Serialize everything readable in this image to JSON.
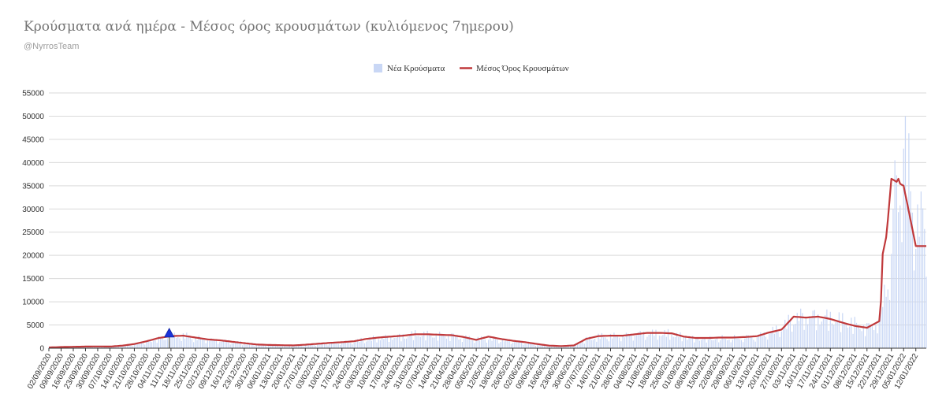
{
  "title": "Κρούσματα ανά ημέρα - Μέσος όρος κρουσμάτων (κυλιόμενος 7ημερου)",
  "subtitle": "@NyrrosTeam",
  "colors": {
    "bars": "#c9d7f5",
    "line": "#c0393b",
    "marker": "#1a33d9",
    "grid": "#d9d9d9"
  },
  "chart_data": {
    "type": "bar",
    "title": "Κρούσματα ανά ημέρα - Μέσος όρος κρουσμάτων (κυλιόμενος 7ημερου)",
    "xlabel": "",
    "ylabel": "",
    "ylim": [
      0,
      55000
    ],
    "y_ticks": [
      0,
      5000,
      10000,
      15000,
      20000,
      25000,
      30000,
      35000,
      40000,
      45000,
      50000,
      55000
    ],
    "grid": true,
    "legend_position": "top-center",
    "x_start": "02/09/2020",
    "x_end": "18/01/2022",
    "x_tick_labels": [
      "02/09/2020",
      "09/09/2020",
      "16/09/2020",
      "23/09/2020",
      "30/09/2020",
      "07/10/2020",
      "14/10/2020",
      "21/10/2020",
      "28/10/2020",
      "04/11/2020",
      "11/11/2020",
      "18/11/2020",
      "25/11/2020",
      "02/12/2020",
      "09/12/2020",
      "16/12/2020",
      "23/12/2020",
      "30/12/2020",
      "06/01/2021",
      "13/01/2021",
      "20/01/2021",
      "27/01/2021",
      "03/02/2021",
      "10/02/2021",
      "17/02/2021",
      "24/02/2021",
      "03/03/2021",
      "10/03/2021",
      "17/03/2021",
      "24/03/2021",
      "31/03/2021",
      "07/04/2021",
      "14/04/2021",
      "21/04/2021",
      "28/04/2021",
      "05/05/2021",
      "12/05/2021",
      "19/05/2021",
      "26/05/2021",
      "02/06/2021",
      "09/06/2021",
      "16/06/2021",
      "23/06/2021",
      "30/06/2021",
      "07/07/2021",
      "14/07/2021",
      "21/07/2021",
      "28/07/2021",
      "04/08/2021",
      "11/08/2021",
      "18/08/2021",
      "25/08/2021",
      "01/09/2021",
      "08/09/2021",
      "15/09/2021",
      "22/09/2021",
      "29/09/2021",
      "06/10/2021",
      "13/10/2021",
      "20/10/2021",
      "27/10/2021",
      "03/11/2021",
      "10/11/2021",
      "17/11/2021",
      "24/11/2021",
      "01/12/2021",
      "08/12/2021",
      "15/12/2021",
      "22/12/2021",
      "29/12/2021",
      "05/01/2022",
      "12/01/2022"
    ],
    "series": [
      {
        "name": "Νέα Κρούσματα",
        "kind": "bar",
        "weekly_values": [
          150,
          250,
          300,
          350,
          380,
          350,
          550,
          900,
          1500,
          2200,
          2700,
          2800,
          2300,
          1900,
          1700,
          1400,
          1100,
          800,
          700,
          650,
          600,
          750,
          950,
          1150,
          1300,
          1500,
          2000,
          2300,
          2500,
          2700,
          3200,
          3000,
          2900,
          2800,
          2400,
          2000,
          2200,
          1800,
          1600,
          1300,
          900,
          550,
          450,
          600,
          2000,
          2600,
          2700,
          2700,
          3000,
          3300,
          3300,
          3300,
          2600,
          2200,
          2200,
          2300,
          2300,
          2400,
          2600,
          3500,
          4500,
          6800,
          7200,
          7000,
          6800,
          6200,
          5500,
          4600,
          6000,
          21000,
          45000,
          28000
        ],
        "peak_daily": 50000
      },
      {
        "name": "Μέσος Όρος Κρουσμάτων",
        "kind": "line",
        "weekly_values": [
          150,
          250,
          300,
          350,
          380,
          350,
          550,
          900,
          1500,
          2200,
          2600,
          2700,
          2300,
          1900,
          1700,
          1400,
          1100,
          800,
          700,
          650,
          600,
          750,
          950,
          1150,
          1300,
          1500,
          2000,
          2300,
          2500,
          2700,
          3000,
          3000,
          2900,
          2800,
          2400,
          1800,
          2500,
          2000,
          1600,
          1300,
          900,
          550,
          450,
          600,
          2000,
          2600,
          2700,
          2700,
          3000,
          3300,
          3300,
          3200,
          2500,
          2200,
          2200,
          2300,
          2300,
          2400,
          2600,
          3400,
          4000,
          6800,
          6600,
          6800,
          6300,
          5500,
          4800,
          4400,
          5800,
          36500,
          35000,
          22000
        ]
      }
    ],
    "annotations": [
      {
        "type": "triangle-marker",
        "x": "10/11/2020",
        "y": 2400
      }
    ]
  }
}
